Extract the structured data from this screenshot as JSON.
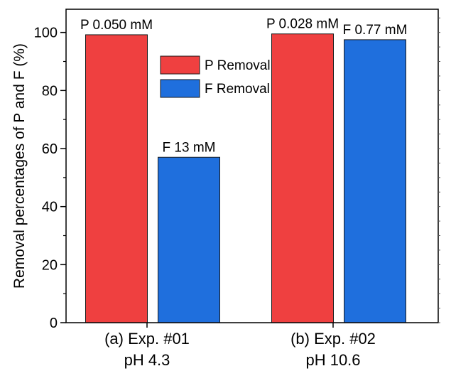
{
  "chart_data": {
    "type": "bar",
    "categories": [
      [
        "(a) Exp. #01",
        "pH 4.3"
      ],
      [
        "(b) Exp. #02",
        "pH 10.6"
      ]
    ],
    "series": [
      {
        "name": "P Removal",
        "color": "#ef4040",
        "values": [
          99.2,
          99.5
        ],
        "labels": [
          "P 0.050 mM",
          "P 0.028 mM"
        ]
      },
      {
        "name": "F Removal",
        "color": "#1f6fdd",
        "values": [
          57.0,
          97.5
        ],
        "labels": [
          "F 13 mM",
          "F 0.77 mM"
        ]
      }
    ],
    "ylabel": "Removal percentages of P and F (%)",
    "xlabel": "",
    "title": "",
    "ylim": [
      0,
      108
    ],
    "yticks": [
      0,
      20,
      40,
      60,
      80,
      100
    ],
    "grid": false,
    "legend_position": "top-center"
  }
}
